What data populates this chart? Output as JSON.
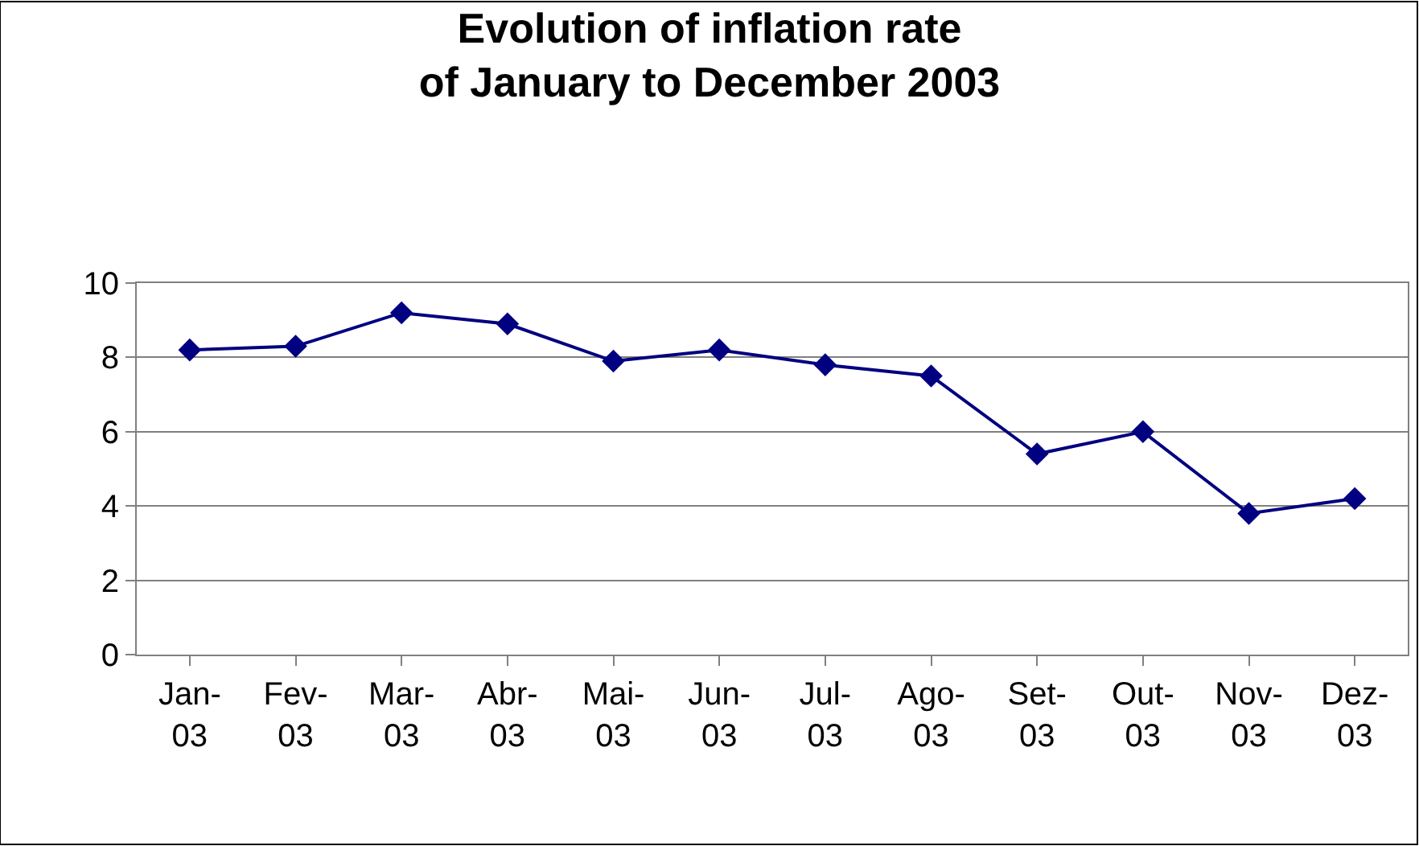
{
  "chart_data": {
    "type": "line",
    "title": "Evolution of inflation rate\nof January to December 2003",
    "categories": [
      "Jan-03",
      "Fev-03",
      "Mar-03",
      "Abr-03",
      "Mai-03",
      "Jun-03",
      "Jul-03",
      "Ago-03",
      "Set-03",
      "Out-03",
      "Nov-03",
      "Dez-03"
    ],
    "series": [
      {
        "color": "#000080",
        "values": [
          8.2,
          8.3,
          9.2,
          8.9,
          7.9,
          8.2,
          7.8,
          7.5,
          5.4,
          6.0,
          3.8,
          4.2
        ]
      }
    ],
    "ylim": [
      0,
      10
    ],
    "yticks": [
      0,
      2,
      4,
      6,
      8,
      10
    ],
    "grid": "y",
    "marker": "diamond",
    "line_style": "solid"
  }
}
